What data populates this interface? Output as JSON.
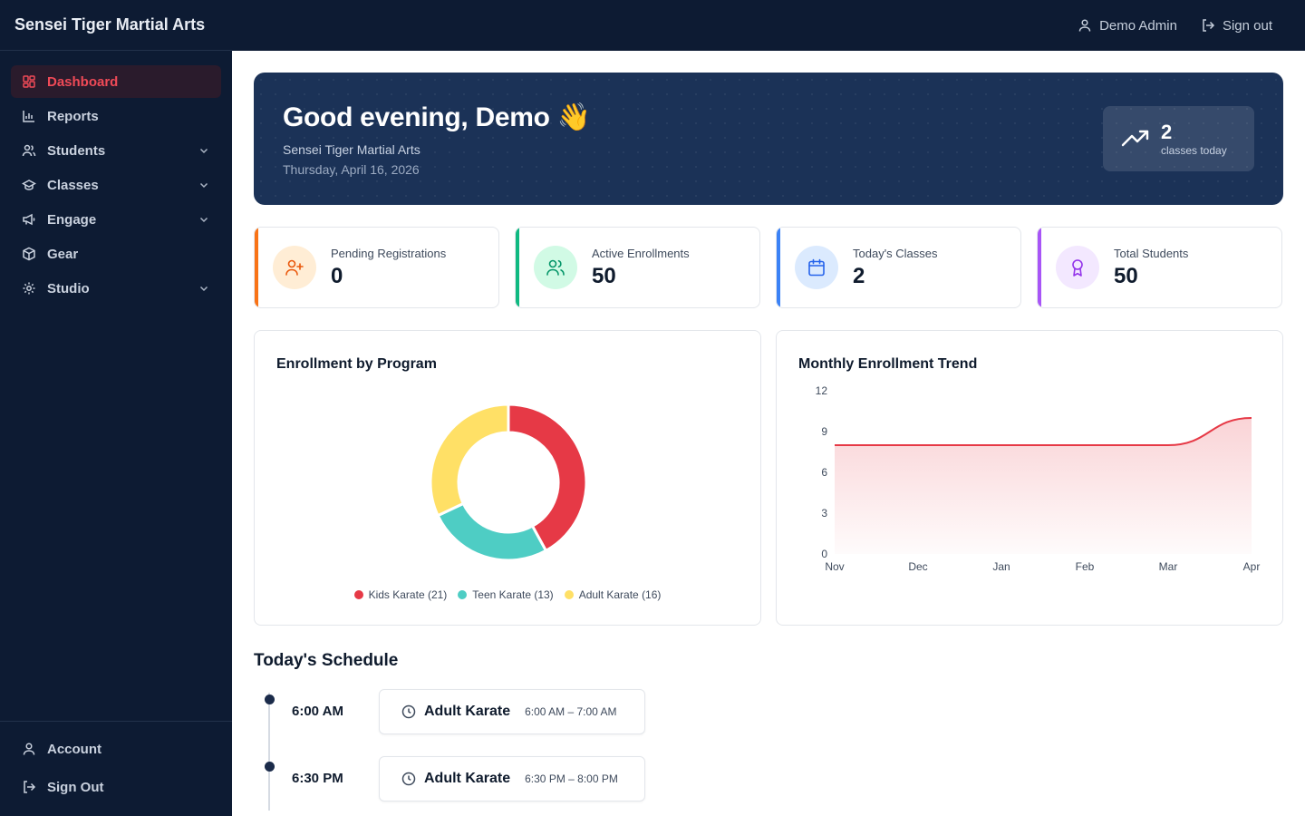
{
  "brand": "Sensei Tiger Martial Arts",
  "sidebar": {
    "items": [
      {
        "label": "Dashboard",
        "icon": "dashboard-icon",
        "active": true
      },
      {
        "label": "Reports",
        "icon": "bar-chart-icon"
      },
      {
        "label": "Students",
        "icon": "users-icon",
        "expandable": true
      },
      {
        "label": "Classes",
        "icon": "graduation-cap-icon",
        "expandable": true
      },
      {
        "label": "Engage",
        "icon": "megaphone-icon",
        "expandable": true
      },
      {
        "label": "Gear",
        "icon": "box-icon"
      },
      {
        "label": "Studio",
        "icon": "gear-icon",
        "expandable": true
      }
    ],
    "bottom": [
      {
        "label": "Account",
        "icon": "user-icon"
      },
      {
        "label": "Sign Out",
        "icon": "sign-out-icon"
      }
    ],
    "active_color": "#ef4a57"
  },
  "topbar": {
    "user_label": "Demo Admin",
    "signout_label": "Sign out"
  },
  "hero": {
    "greeting": "Good evening, Demo 👋",
    "studio": "Sensei Tiger Martial Arts",
    "date": "Thursday, April 16, 2026",
    "classes_count": "2",
    "classes_label": "classes today"
  },
  "stats": [
    {
      "label": "Pending Registrations",
      "value": "0",
      "color": "#f97316",
      "bg": "#ffedd5",
      "icon": "user-plus-icon"
    },
    {
      "label": "Active Enrollments",
      "value": "50",
      "color": "#10b981",
      "bg": "#d1fae5",
      "icon": "users-icon"
    },
    {
      "label": "Today's Classes",
      "value": "2",
      "color": "#3b82f6",
      "bg": "#dbeafe",
      "icon": "calendar-icon"
    },
    {
      "label": "Total Students",
      "value": "50",
      "color": "#a855f7",
      "bg": "#f3e8ff",
      "icon": "award-icon"
    }
  ],
  "charts": {
    "enrollment_title": "Enrollment by Program",
    "trend_title": "Monthly Enrollment Trend"
  },
  "chart_data": [
    {
      "type": "pie",
      "title": "Enrollment by Program",
      "categories": [
        "Kids Karate",
        "Teen Karate",
        "Adult Karate"
      ],
      "values": [
        21,
        13,
        16
      ],
      "legend_labels": [
        "Kids Karate (21)",
        "Teen Karate (13)",
        "Adult Karate (16)"
      ],
      "colors": [
        "#e63946",
        "#4ecdc4",
        "#ffe066"
      ],
      "donut": true
    },
    {
      "type": "area",
      "title": "Monthly Enrollment Trend",
      "x": [
        "Nov",
        "Dec",
        "Jan",
        "Feb",
        "Mar",
        "Apr"
      ],
      "series": [
        {
          "values": [
            8,
            8,
            8,
            8,
            8,
            10
          ]
        }
      ],
      "ylim": [
        0,
        12
      ],
      "yticks": [
        "0",
        "3",
        "6",
        "9",
        "12"
      ],
      "color": "#e63946",
      "grid": false
    }
  ],
  "schedule": {
    "title": "Today's Schedule",
    "items": [
      {
        "time": "6:00 AM",
        "class": "Adult Karate",
        "range": "6:00 AM – 7:00 AM"
      },
      {
        "time": "6:30 PM",
        "class": "Adult Karate",
        "range": "6:30 PM – 8:00 PM"
      }
    ]
  }
}
